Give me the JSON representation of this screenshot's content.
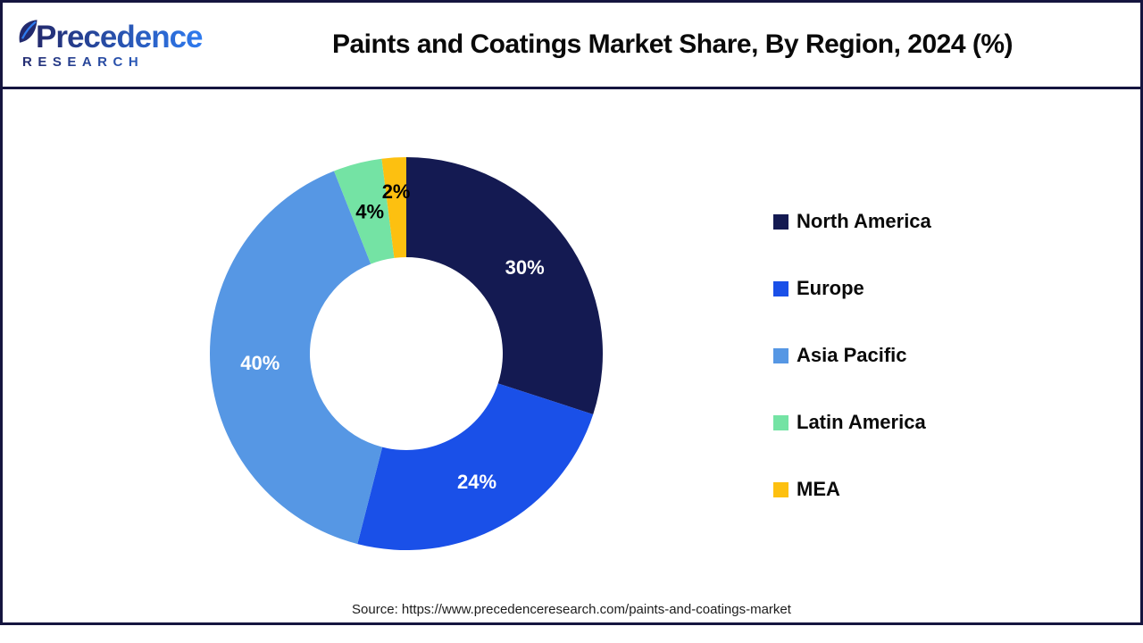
{
  "header": {
    "logo": {
      "line1": "Precedence",
      "line2": "RESEARCH"
    },
    "title": "Paints and Coatings Market Share, By Region, 2024 (%)"
  },
  "chart_data": {
    "type": "pie",
    "subtype": "donut",
    "title": "Paints and Coatings Market Share, By Region, 2024 (%)",
    "start_angle_deg": 0,
    "direction": "clockwise",
    "legend_position": "right",
    "inner_radius_ratio": 0.49,
    "slices": [
      {
        "label": "North America",
        "value": 30,
        "display": "30%",
        "color": "#141a52",
        "label_color": "#ffffff"
      },
      {
        "label": "Europe",
        "value": 24,
        "display": "24%",
        "color": "#1a50e8",
        "label_color": "#ffffff"
      },
      {
        "label": "Asia Pacific",
        "value": 40,
        "display": "40%",
        "color": "#5697e4",
        "label_color": "#ffffff"
      },
      {
        "label": "Latin America",
        "value": 4,
        "display": "4%",
        "color": "#74e3a4",
        "label_color": "#000000"
      },
      {
        "label": "MEA",
        "value": 2,
        "display": "2%",
        "color": "#fdc010",
        "label_color": "#000000"
      }
    ]
  },
  "footer": {
    "source": "Source: https://www.precedenceresearch.com/paints-and-coatings-market"
  },
  "colors": {
    "frame": "#15153f",
    "background": "#ffffff",
    "logo_gradient_start": "#232a6e",
    "logo_gradient_end": "#2e7bf0"
  }
}
